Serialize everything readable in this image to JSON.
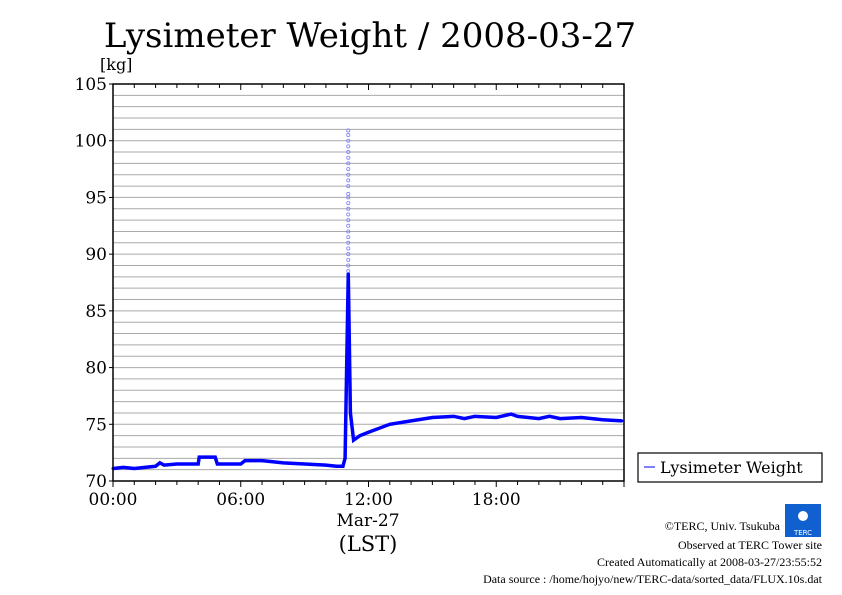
{
  "chart_data": {
    "type": "line",
    "title": "Lysimeter Weight / 2008-03-27",
    "ylabel": "[kg]",
    "xlabel": "(LST)",
    "date_label": "Mar-27",
    "ylim": [
      70,
      105
    ],
    "yticks": [
      70,
      75,
      80,
      85,
      90,
      95,
      100,
      105
    ],
    "xlim_hours": [
      0,
      24
    ],
    "xticks": [
      {
        "h": 0,
        "label": "00:00"
      },
      {
        "h": 6,
        "label": "06:00"
      },
      {
        "h": 12,
        "label": "12:00"
      },
      {
        "h": 18,
        "label": "18:00"
      }
    ],
    "grid": true,
    "legend": {
      "position": "right",
      "label": "Lysimeter Weight"
    },
    "series": [
      {
        "name": "Lysimeter Weight",
        "color": "#0000ff",
        "x_hours": [
          0,
          0.5,
          1,
          1.5,
          2,
          2.2,
          2.4,
          3,
          4,
          4.05,
          4.8,
          4.9,
          6,
          6.2,
          7,
          8,
          9,
          10,
          10.5,
          10.8,
          10.9,
          11.05,
          11.15,
          11.3,
          11.6,
          12,
          13,
          14,
          15,
          16,
          16.5,
          17,
          18,
          18.7,
          19,
          20,
          20.5,
          21,
          22,
          23,
          23.9
        ],
        "values": [
          71.1,
          71.2,
          71.1,
          71.2,
          71.3,
          71.6,
          71.4,
          71.5,
          71.5,
          72.1,
          72.1,
          71.5,
          71.5,
          71.8,
          71.8,
          71.6,
          71.5,
          71.4,
          71.3,
          71.3,
          72.0,
          88.3,
          76.0,
          73.6,
          74.0,
          74.3,
          75.0,
          75.3,
          75.6,
          75.7,
          75.5,
          75.7,
          75.6,
          75.9,
          75.7,
          75.5,
          75.7,
          75.5,
          75.6,
          75.4,
          75.3
        ]
      },
      {
        "name": "spike-scatter",
        "color": "#8080ff",
        "x_hours": [
          11.05
        ],
        "values": [
          88.5,
          89,
          89.5,
          90,
          90.5,
          91,
          91.5,
          92,
          92.5,
          93,
          93.5,
          94,
          94.5,
          95,
          95.3,
          96,
          96.5,
          97,
          97.5,
          98,
          98.5,
          99,
          99.5,
          100,
          100.5,
          100.9
        ]
      }
    ]
  },
  "footer": {
    "copyright": "©TERC, Univ. Tsukuba",
    "logo_text": "TERC",
    "observed": "Observed at TERC Tower site",
    "created": "Created Automatically at 2008-03-27/23:55:52",
    "source": "Data source : /home/hojyo/new/TERC-data/sorted_data/FLUX.10s.dat"
  }
}
